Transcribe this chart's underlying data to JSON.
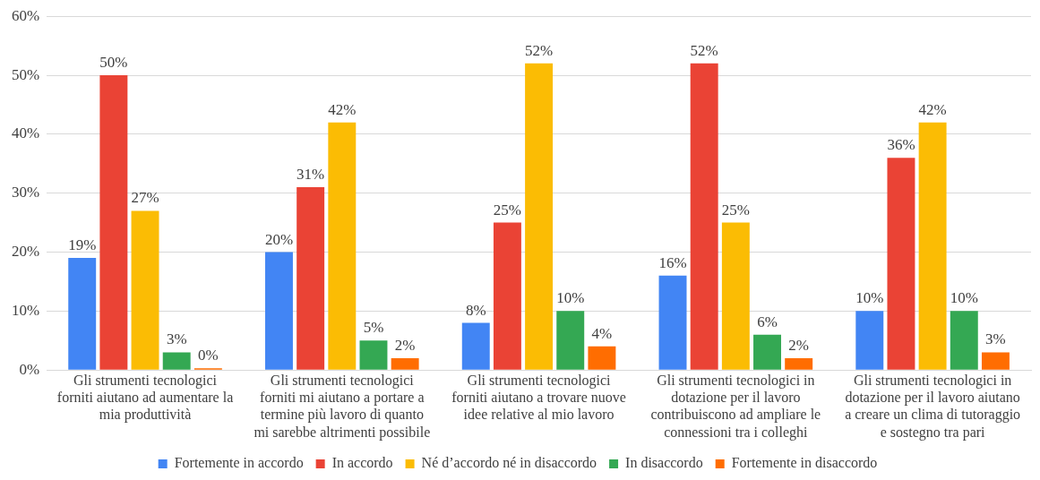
{
  "chart_data": {
    "type": "bar",
    "categories": [
      "Gli strumenti tecnologici forniti aiutano ad aumentare la mia produttività",
      "Gli strumenti tecnologici forniti mi aiutano a portare a termine più lavoro di quanto mi sarebbe altrimenti possibile",
      "Gli strumenti tecnologici forniti aiutano a trovare nuove idee relative al mio lavoro",
      "Gli strumenti tecnologici in dotazione per il lavoro contribuiscono ad ampliare le connessioni tra i colleghi",
      "Gli strumenti tecnologici in dotazione per il lavoro aiutano a creare un clima di tutoraggio e sostegno tra pari"
    ],
    "series": [
      {
        "name": "Fortemente in accordo",
        "color": "#4285f4",
        "values": [
          19,
          20,
          8,
          16,
          10
        ],
        "value_labels": [
          "19%",
          "20%",
          "8%",
          "16%",
          "10%"
        ]
      },
      {
        "name": "In accordo",
        "color": "#ea4335",
        "values": [
          50,
          31,
          25,
          52,
          36
        ],
        "value_labels": [
          "50%",
          "31%",
          "25%",
          "52%",
          "36%"
        ]
      },
      {
        "name": "Né d’accordo né in disaccordo",
        "color": "#fbbc04",
        "values": [
          27,
          42,
          52,
          25,
          42
        ],
        "value_labels": [
          "27%",
          "42%",
          "52%",
          "25%",
          "42%"
        ]
      },
      {
        "name": "In disaccordo",
        "color": "#34a853",
        "values": [
          3,
          5,
          10,
          6,
          10
        ],
        "value_labels": [
          "3%",
          "5%",
          "10%",
          "6%",
          "10%"
        ]
      },
      {
        "name": "Fortemente in disaccordo",
        "color": "#ff6d01",
        "values": [
          0.3,
          2,
          4,
          2,
          3
        ],
        "value_labels": [
          "0%",
          "2%",
          "4%",
          "2%",
          "3%"
        ]
      }
    ],
    "ylim": [
      0,
      60
    ],
    "yticks": [
      {
        "value": 0,
        "label": "0%"
      },
      {
        "value": 10,
        "label": "10%"
      },
      {
        "value": 20,
        "label": "20%"
      },
      {
        "value": 30,
        "label": "30%"
      },
      {
        "value": 40,
        "label": "40%"
      },
      {
        "value": 50,
        "label": "50%"
      },
      {
        "value": 60,
        "label": "60%"
      }
    ],
    "grid": "y",
    "legend": "bottom"
  }
}
